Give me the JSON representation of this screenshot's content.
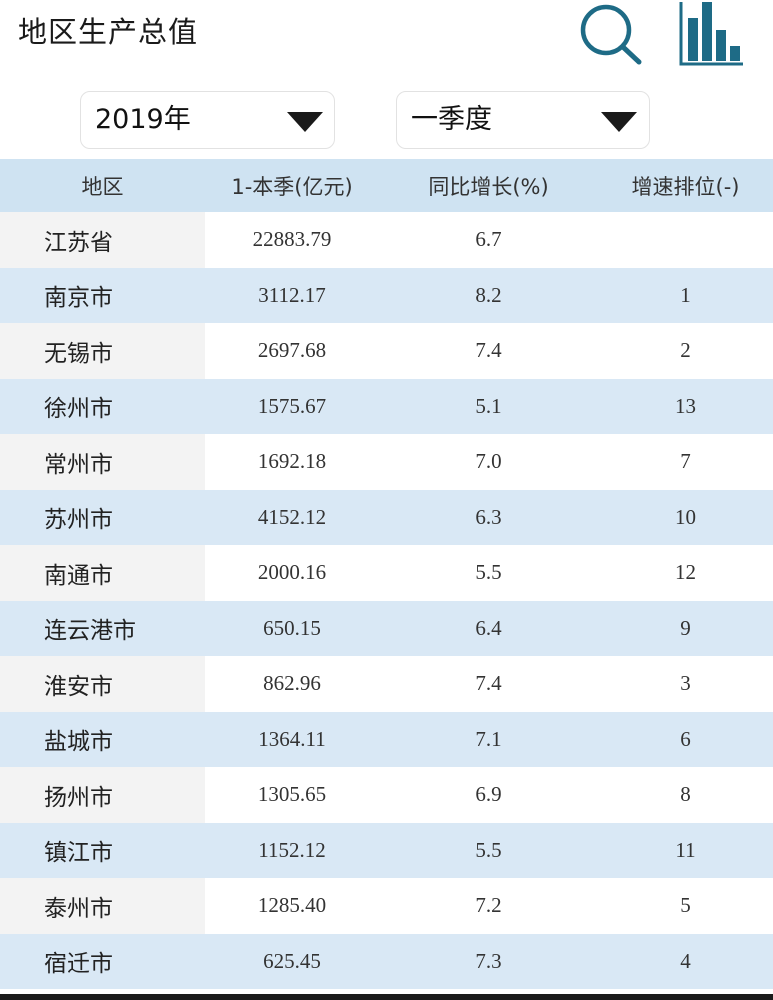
{
  "header": {
    "title": "地区生产总值",
    "icons": {
      "search": "search-icon",
      "chart": "bar-chart-icon"
    }
  },
  "filters": {
    "year": "2019年",
    "quarter": "一季度"
  },
  "table": {
    "columns": [
      "地区",
      "1-本季(亿元)",
      "同比增长(%)",
      "增速排位(-)"
    ],
    "rows": [
      [
        "江苏省",
        "22883.79",
        "6.7",
        ""
      ],
      [
        "南京市",
        "3112.17",
        "8.2",
        "1"
      ],
      [
        "无锡市",
        "2697.68",
        "7.4",
        "2"
      ],
      [
        "徐州市",
        "1575.67",
        "5.1",
        "13"
      ],
      [
        "常州市",
        "1692.18",
        "7.0",
        "7"
      ],
      [
        "苏州市",
        "4152.12",
        "6.3",
        "10"
      ],
      [
        "南通市",
        "2000.16",
        "5.5",
        "12"
      ],
      [
        "连云港市",
        "650.15",
        "6.4",
        "9"
      ],
      [
        "淮安市",
        "862.96",
        "7.4",
        "3"
      ],
      [
        "盐城市",
        "1364.11",
        "7.1",
        "6"
      ],
      [
        "扬州市",
        "1305.65",
        "6.9",
        "8"
      ],
      [
        "镇江市",
        "1152.12",
        "5.5",
        "11"
      ],
      [
        "泰州市",
        "1285.40",
        "7.2",
        "5"
      ],
      [
        "宿迁市",
        "625.45",
        "7.3",
        "4"
      ]
    ]
  },
  "colors": {
    "icon": "#1e6b86",
    "header_bg": "#cfe3f2",
    "stripe_bg": "#d9e8f5",
    "region_cell_bg": "#f3f3f3"
  }
}
